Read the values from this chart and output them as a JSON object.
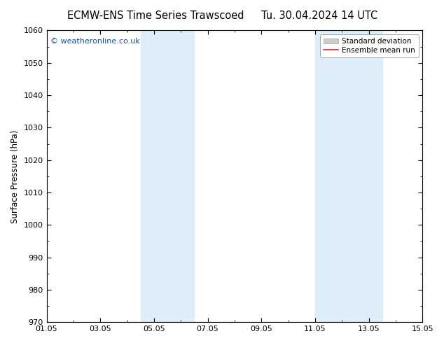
{
  "title_left": "ECMW-ENS Time Series Trawscoed",
  "title_right": "Tu. 30.04.2024 14 UTC",
  "ylabel": "Surface Pressure (hPa)",
  "ylim": [
    970,
    1060
  ],
  "yticks": [
    970,
    980,
    990,
    1000,
    1010,
    1020,
    1030,
    1040,
    1050,
    1060
  ],
  "xtick_labels": [
    "01.05",
    "03.05",
    "05.05",
    "07.05",
    "09.05",
    "11.05",
    "13.05",
    "15.05"
  ],
  "xtick_positions": [
    0,
    2,
    4,
    6,
    8,
    10,
    12,
    14
  ],
  "xlim": [
    0,
    14
  ],
  "shade_bands": [
    {
      "x_start": 3.5,
      "x_end": 5.5
    },
    {
      "x_start": 10.0,
      "x_end": 12.5
    }
  ],
  "shade_color": "#ddeef8",
  "background_color": "#ffffff",
  "plot_bg_color": "#ffffff",
  "watermark_text": "© weatheronline.co.uk",
  "watermark_color": "#1155aa",
  "watermark_fontsize": 8,
  "legend_std_color": "#cccccc",
  "legend_std_edge": "#aaaaaa",
  "legend_mean_color": "#dd2222",
  "title_fontsize": 10.5,
  "axis_label_fontsize": 8.5,
  "tick_fontsize": 8,
  "legend_fontsize": 7.5
}
